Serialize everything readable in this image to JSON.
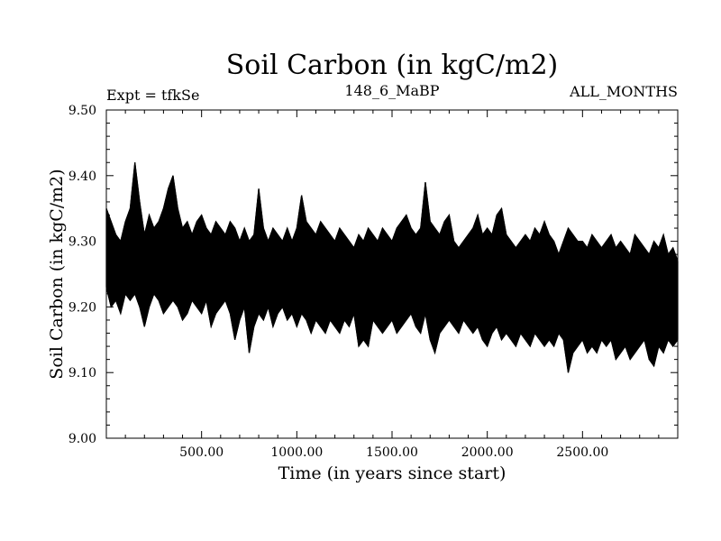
{
  "chart_data": {
    "type": "line",
    "title": "Soil Carbon (in kgC/m2)",
    "subtitle_left": "Expt = tfkSe",
    "subtitle_center": "148_6_MaBP",
    "subtitle_right": "ALL_MONTHS",
    "xlabel": "Time (in years since start)",
    "ylabel": "Soil Carbon (in kgC/m2)",
    "xlim": [
      0,
      3000
    ],
    "ylim": [
      9.0,
      9.5
    ],
    "x_ticks": [
      {
        "value": 500,
        "label": "500.00"
      },
      {
        "value": 1000,
        "label": "1000.00"
      },
      {
        "value": 1500,
        "label": "1500.00"
      },
      {
        "value": 2000,
        "label": "2000.00"
      },
      {
        "value": 2500,
        "label": "2500.00"
      }
    ],
    "y_ticks": [
      {
        "value": 9.0,
        "label": "9.00"
      },
      {
        "value": 9.1,
        "label": "9.10"
      },
      {
        "value": 9.2,
        "label": "9.20"
      },
      {
        "value": 9.3,
        "label": "9.30"
      },
      {
        "value": 9.4,
        "label": "9.40"
      },
      {
        "value": 9.5,
        "label": "9.50"
      }
    ],
    "series": [
      {
        "name": "Soil Carbon",
        "color": "#000000",
        "x_start": 0,
        "x_step": 25,
        "upper_envelope": [
          9.35,
          9.33,
          9.31,
          9.3,
          9.33,
          9.35,
          9.42,
          9.36,
          9.31,
          9.34,
          9.32,
          9.33,
          9.35,
          9.38,
          9.4,
          9.35,
          9.32,
          9.33,
          9.31,
          9.33,
          9.34,
          9.32,
          9.31,
          9.33,
          9.32,
          9.31,
          9.33,
          9.32,
          9.3,
          9.32,
          9.3,
          9.31,
          9.38,
          9.32,
          9.3,
          9.32,
          9.31,
          9.3,
          9.32,
          9.3,
          9.32,
          9.37,
          9.33,
          9.32,
          9.31,
          9.33,
          9.32,
          9.31,
          9.3,
          9.32,
          9.31,
          9.3,
          9.29,
          9.31,
          9.3,
          9.32,
          9.31,
          9.3,
          9.32,
          9.31,
          9.3,
          9.32,
          9.33,
          9.34,
          9.32,
          9.31,
          9.32,
          9.39,
          9.33,
          9.32,
          9.31,
          9.33,
          9.34,
          9.3,
          9.29,
          9.3,
          9.31,
          9.32,
          9.34,
          9.31,
          9.32,
          9.31,
          9.34,
          9.35,
          9.31,
          9.3,
          9.29,
          9.3,
          9.31,
          9.3,
          9.32,
          9.31,
          9.33,
          9.31,
          9.3,
          9.28,
          9.3,
          9.32,
          9.31,
          9.3,
          9.3,
          9.29,
          9.31,
          9.3,
          9.29,
          9.3,
          9.31,
          9.29,
          9.3,
          9.29,
          9.28,
          9.31,
          9.3,
          9.29,
          9.28,
          9.3,
          9.29,
          9.31,
          9.28,
          9.29,
          9.27
        ],
        "lower_envelope": [
          9.23,
          9.2,
          9.21,
          9.19,
          9.22,
          9.21,
          9.22,
          9.2,
          9.17,
          9.2,
          9.22,
          9.21,
          9.19,
          9.2,
          9.21,
          9.2,
          9.18,
          9.19,
          9.21,
          9.2,
          9.19,
          9.21,
          9.17,
          9.19,
          9.2,
          9.21,
          9.19,
          9.15,
          9.18,
          9.2,
          9.13,
          9.17,
          9.19,
          9.18,
          9.2,
          9.17,
          9.19,
          9.2,
          9.18,
          9.19,
          9.17,
          9.19,
          9.18,
          9.16,
          9.18,
          9.17,
          9.16,
          9.18,
          9.17,
          9.16,
          9.18,
          9.17,
          9.19,
          9.14,
          9.15,
          9.14,
          9.18,
          9.17,
          9.16,
          9.17,
          9.18,
          9.16,
          9.17,
          9.18,
          9.19,
          9.17,
          9.16,
          9.19,
          9.15,
          9.13,
          9.16,
          9.17,
          9.18,
          9.17,
          9.16,
          9.18,
          9.17,
          9.16,
          9.17,
          9.15,
          9.14,
          9.16,
          9.17,
          9.15,
          9.16,
          9.15,
          9.14,
          9.16,
          9.15,
          9.14,
          9.16,
          9.15,
          9.14,
          9.15,
          9.14,
          9.16,
          9.15,
          9.1,
          9.13,
          9.14,
          9.15,
          9.13,
          9.14,
          9.13,
          9.15,
          9.14,
          9.15,
          9.12,
          9.13,
          9.14,
          9.12,
          9.13,
          9.14,
          9.15,
          9.12,
          9.11,
          9.14,
          9.13,
          9.15,
          9.14,
          9.15
        ]
      }
    ]
  }
}
